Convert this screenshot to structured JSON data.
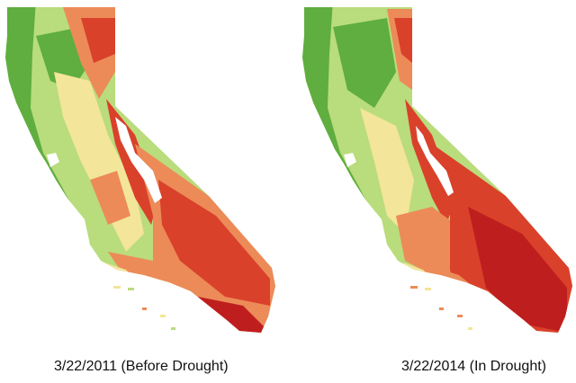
{
  "maps": [
    {
      "caption": "3/22/2011 (Before Drought)",
      "state": "before",
      "colors": {
        "wet": "#5fae3f",
        "moist": "#b9dc7c",
        "neutral": "#f3e59a",
        "dry": "#ec8b58",
        "very_dry": "#d9412b",
        "extreme": "#bf1e1e"
      }
    },
    {
      "caption": "3/22/2014 (In Drought)",
      "state": "drought",
      "colors": {
        "wet": "#5fae3f",
        "moist": "#b9dc7c",
        "neutral": "#f3e59a",
        "dry": "#ec8b58",
        "very_dry": "#d9412b",
        "extreme": "#bf1e1e"
      }
    }
  ]
}
